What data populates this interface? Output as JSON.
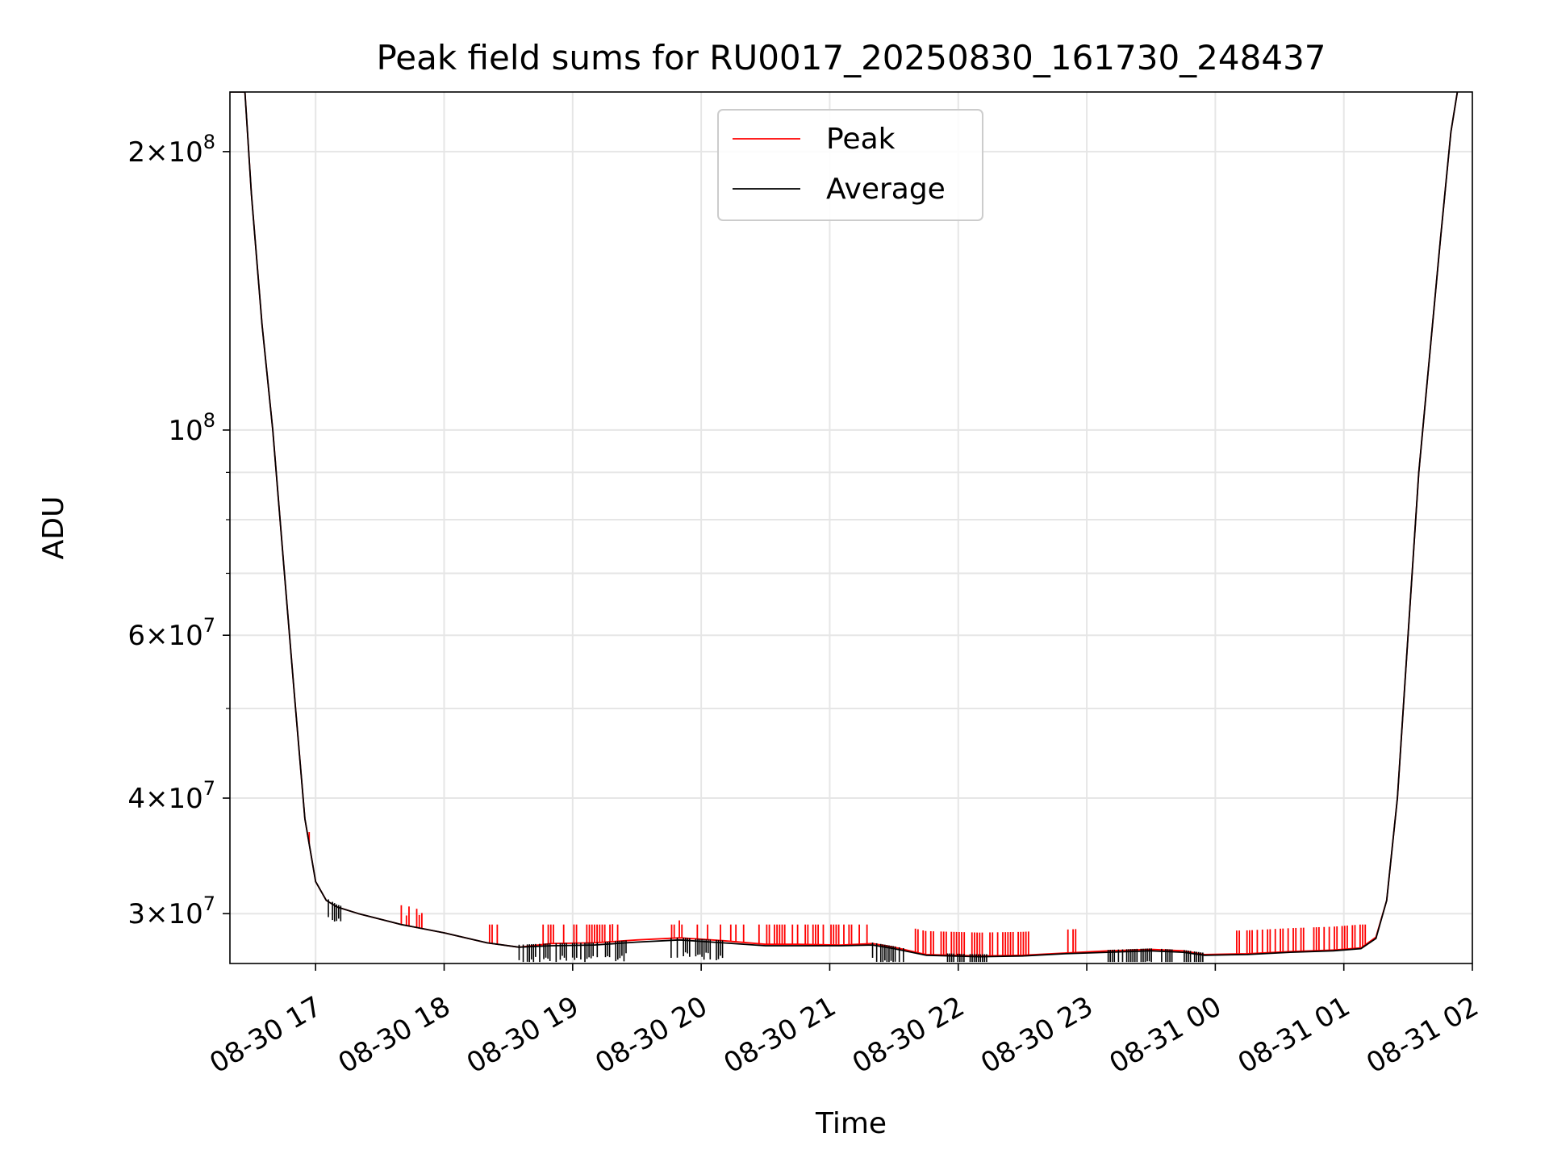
{
  "colors": {
    "peak": "#ff0000",
    "average": "#000000",
    "grid": "#e6e6e6",
    "frame": "#000000"
  },
  "chart_data": {
    "type": "line",
    "title": "Peak field sums for RU0017_20250830_161730_248437",
    "xlabel": "Time",
    "ylabel": "ADU",
    "yscale": "log",
    "grid": true,
    "legend_position": "upper center",
    "xlim": [
      "2025-08-30 16:20",
      "2025-08-31 02:00"
    ],
    "ylim": [
      26500000,
      232000000
    ],
    "x_ticks": [
      {
        "x": "2025-08-30 17:00",
        "label": "08-30 17"
      },
      {
        "x": "2025-08-30 18:00",
        "label": "08-30 18"
      },
      {
        "x": "2025-08-30 19:00",
        "label": "08-30 19"
      },
      {
        "x": "2025-08-30 20:00",
        "label": "08-30 20"
      },
      {
        "x": "2025-08-30 21:00",
        "label": "08-30 21"
      },
      {
        "x": "2025-08-30 22:00",
        "label": "08-30 22"
      },
      {
        "x": "2025-08-30 23:00",
        "label": "08-30 23"
      },
      {
        "x": "2025-08-31 00:00",
        "label": "08-31 00"
      },
      {
        "x": "2025-08-31 01:00",
        "label": "08-31 01"
      },
      {
        "x": "2025-08-31 02:00",
        "label": "08-31 02"
      }
    ],
    "y_ticks": [
      {
        "value": 30000000,
        "mantissa": "3",
        "exp": "7"
      },
      {
        "value": 40000000,
        "mantissa": "4",
        "exp": "7"
      },
      {
        "value": 60000000,
        "mantissa": "6",
        "exp": "7"
      },
      {
        "value": 100000000,
        "mantissa": "",
        "exp": "8"
      },
      {
        "value": 200000000,
        "mantissa": "2",
        "exp": "8"
      }
    ],
    "y_minor_ticks": [
      50000000,
      70000000,
      80000000,
      90000000
    ],
    "series": [
      {
        "name": "Peak",
        "color": "#ff0000",
        "x": [
          "2025-08-30 16:20",
          "2025-08-30 16:27",
          "2025-08-30 16:30",
          "2025-08-30 16:35",
          "2025-08-30 16:40",
          "2025-08-30 16:45",
          "2025-08-30 16:50",
          "2025-08-30 16:55",
          "2025-08-30 17:00",
          "2025-08-30 17:05",
          "2025-08-30 17:10",
          "2025-08-30 17:20",
          "2025-08-30 17:40",
          "2025-08-30 18:00",
          "2025-08-30 18:20",
          "2025-08-30 18:35",
          "2025-08-30 18:50",
          "2025-08-30 19:10",
          "2025-08-30 19:30",
          "2025-08-30 19:50",
          "2025-08-30 20:10",
          "2025-08-30 20:30",
          "2025-08-30 20:45",
          "2025-08-30 21:05",
          "2025-08-30 21:20",
          "2025-08-30 21:30",
          "2025-08-30 21:45",
          "2025-08-30 22:10",
          "2025-08-30 22:30",
          "2025-08-30 22:50",
          "2025-08-30 23:10",
          "2025-08-30 23:30",
          "2025-08-30 23:45",
          "2025-08-30 23:55",
          "2025-08-31 00:15",
          "2025-08-31 00:35",
          "2025-08-31 00:55",
          "2025-08-31 01:08",
          "2025-08-31 01:15",
          "2025-08-31 01:20",
          "2025-08-31 01:25",
          "2025-08-31 01:30",
          "2025-08-31 01:35",
          "2025-08-31 01:40",
          "2025-08-31 01:45",
          "2025-08-31 01:50",
          "2025-08-31 01:53"
        ],
        "y": [
          232000000,
          232000000,
          180000000,
          130000000,
          100000000,
          72000000,
          52000000,
          38000000,
          32500000,
          31000000,
          30500000,
          30000000,
          29200000,
          28600000,
          27900000,
          27600000,
          27850000,
          27900000,
          28100000,
          28250000,
          28050000,
          27800000,
          27800000,
          27750000,
          27850000,
          27600000,
          27100000,
          27000000,
          27050000,
          27200000,
          27350000,
          27450000,
          27350000,
          27100000,
          27150000,
          27300000,
          27400000,
          27550000,
          28300000,
          31000000,
          40000000,
          60000000,
          90000000,
          120000000,
          160000000,
          210000000,
          232000000
        ],
        "spike_top": 29200000,
        "spike_windows": [
          [
            "2025-08-30 16:57",
            "2025-08-30 16:59"
          ],
          [
            "2025-08-30 17:40",
            "2025-08-30 17:50"
          ],
          [
            "2025-08-30 18:20",
            "2025-08-30 18:25"
          ],
          [
            "2025-08-30 18:45",
            "2025-08-30 19:25"
          ],
          [
            "2025-08-30 19:45",
            "2025-08-30 21:20"
          ],
          [
            "2025-08-30 21:40",
            "2025-08-30 22:35"
          ],
          [
            "2025-08-30 22:50",
            "2025-08-30 22:55"
          ],
          [
            "2025-08-31 00:10",
            "2025-08-31 01:12"
          ]
        ]
      },
      {
        "name": "Average",
        "color": "#000000",
        "x": [
          "2025-08-30 16:20",
          "2025-08-30 16:27",
          "2025-08-30 16:30",
          "2025-08-30 16:35",
          "2025-08-30 16:40",
          "2025-08-30 16:45",
          "2025-08-30 16:50",
          "2025-08-30 16:55",
          "2025-08-30 17:00",
          "2025-08-30 17:05",
          "2025-08-30 17:10",
          "2025-08-30 17:20",
          "2025-08-30 17:40",
          "2025-08-30 18:00",
          "2025-08-30 18:20",
          "2025-08-30 18:35",
          "2025-08-30 18:50",
          "2025-08-30 19:10",
          "2025-08-30 19:30",
          "2025-08-30 19:50",
          "2025-08-30 20:10",
          "2025-08-30 20:30",
          "2025-08-30 20:45",
          "2025-08-30 21:05",
          "2025-08-30 21:20",
          "2025-08-30 21:30",
          "2025-08-30 21:45",
          "2025-08-30 22:10",
          "2025-08-30 22:30",
          "2025-08-30 22:50",
          "2025-08-30 23:10",
          "2025-08-30 23:30",
          "2025-08-30 23:45",
          "2025-08-30 23:55",
          "2025-08-31 00:15",
          "2025-08-31 00:35",
          "2025-08-31 00:55",
          "2025-08-31 01:08",
          "2025-08-31 01:15",
          "2025-08-31 01:20",
          "2025-08-31 01:25",
          "2025-08-31 01:30",
          "2025-08-31 01:35",
          "2025-08-31 01:40",
          "2025-08-31 01:45",
          "2025-08-31 01:50",
          "2025-08-31 01:53"
        ],
        "y": [
          232000000,
          232000000,
          180000000,
          130000000,
          100000000,
          72000000,
          52000000,
          38000000,
          32500000,
          31000000,
          30500000,
          30000000,
          29200000,
          28600000,
          27900000,
          27600000,
          27700000,
          27750000,
          27950000,
          28100000,
          27900000,
          27700000,
          27700000,
          27700000,
          27750000,
          27500000,
          27050000,
          26950000,
          27000000,
          27150000,
          27250000,
          27350000,
          27250000,
          27050000,
          27100000,
          27250000,
          27350000,
          27500000,
          28200000,
          31000000,
          40000000,
          60000000,
          90000000,
          120000000,
          160000000,
          210000000,
          232000000
        ],
        "dip_bottom": 26600000,
        "dip_windows": [
          [
            "2025-08-30 17:05",
            "2025-08-30 17:12"
          ],
          [
            "2025-08-30 18:35",
            "2025-08-30 19:25"
          ],
          [
            "2025-08-30 19:45",
            "2025-08-30 20:10"
          ],
          [
            "2025-08-30 21:20",
            "2025-08-30 21:35"
          ],
          [
            "2025-08-30 21:55",
            "2025-08-30 22:15"
          ],
          [
            "2025-08-30 23:10",
            "2025-08-30 23:55"
          ]
        ]
      }
    ]
  }
}
